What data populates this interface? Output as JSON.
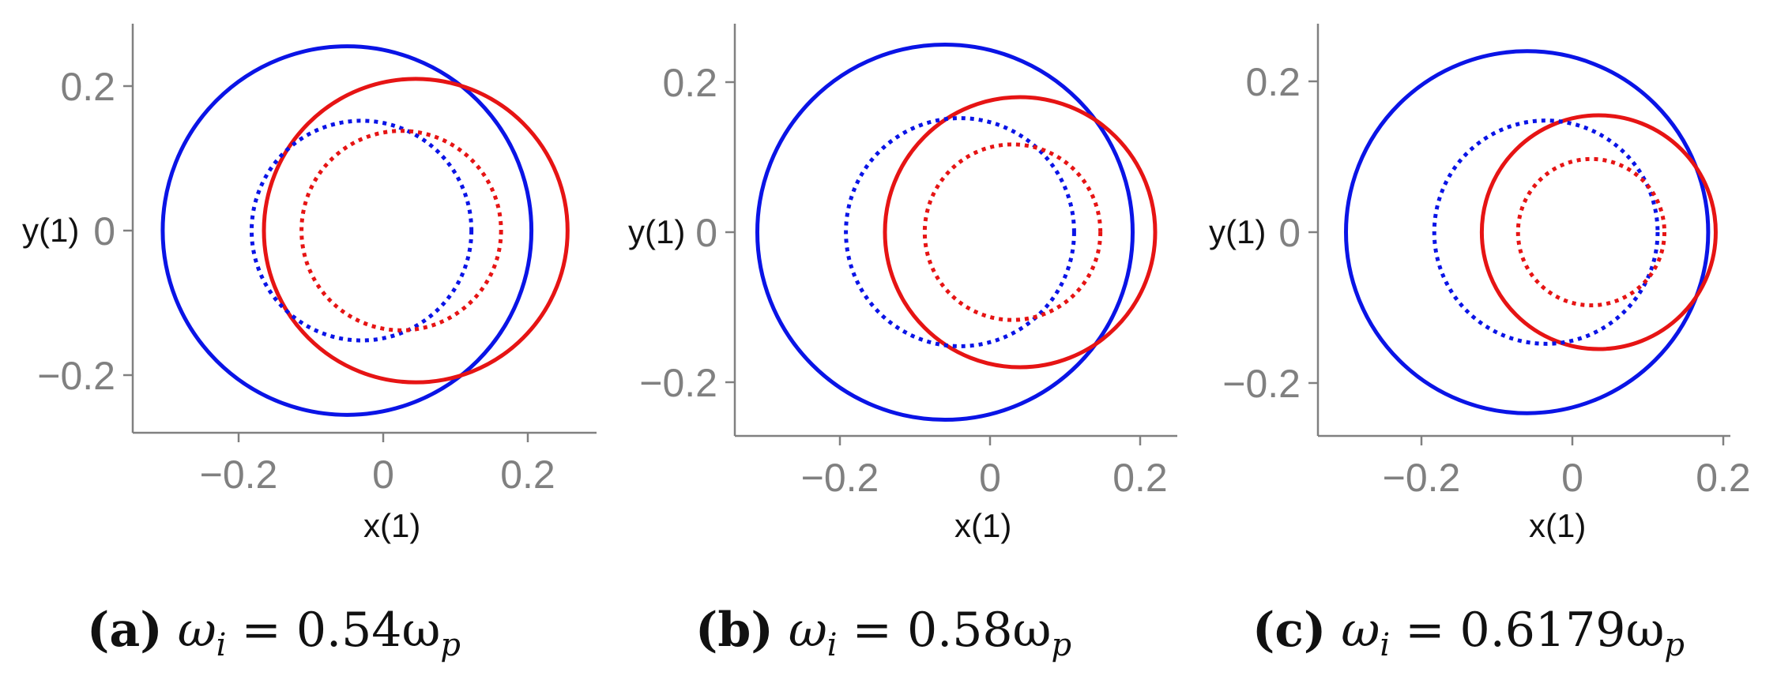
{
  "colors": {
    "blue": "#0a14e6",
    "red": "#e61414",
    "axis": "#808080"
  },
  "chart_data": [
    {
      "type": "line",
      "panel_tag": "(a)",
      "caption": {
        "lhs": "ω",
        "sub": "i",
        "eq": " = 0.54ω",
        "sub2": "p"
      },
      "xlabel": "x(1)",
      "ylabel": "y(1)",
      "xlim": [
        -0.35,
        0.3
      ],
      "ylim": [
        -0.28,
        0.28
      ],
      "xticks": [
        -0.2,
        0,
        0.2
      ],
      "xtick_labels": [
        "−0.2",
        "0",
        "0.2"
      ],
      "yticks": [
        -0.2,
        0,
        0.2
      ],
      "ytick_labels": [
        "−0.2",
        "0",
        "0.2"
      ],
      "series": [
        {
          "color": "blue",
          "style": "solid",
          "center": [
            -0.05,
            0
          ],
          "radius": 0.255
        },
        {
          "color": "red",
          "style": "solid",
          "center": [
            0.045,
            0
          ],
          "radius": 0.21
        },
        {
          "color": "blue",
          "style": "dotted",
          "center": [
            -0.03,
            0
          ],
          "radius": 0.152
        },
        {
          "color": "red",
          "style": "dotted",
          "center": [
            0.025,
            0
          ],
          "radius": 0.138
        }
      ]
    },
    {
      "type": "line",
      "panel_tag": "(b)",
      "caption": {
        "lhs": "ω",
        "sub": "i",
        "eq": " = 0.58ω",
        "sub2": "p"
      },
      "xlabel": "x(1)",
      "ylabel": "y(1)",
      "xlim": [
        -0.35,
        0.26
      ],
      "ylim": [
        -0.28,
        0.28
      ],
      "xticks": [
        -0.2,
        0,
        0.2
      ],
      "xtick_labels": [
        "−0.2",
        "0",
        "0.2"
      ],
      "yticks": [
        -0.2,
        0,
        0.2
      ],
      "ytick_labels": [
        "−0.2",
        "0",
        "0.2"
      ],
      "series": [
        {
          "color": "blue",
          "style": "solid",
          "center": [
            -0.06,
            0
          ],
          "radius": 0.25
        },
        {
          "color": "red",
          "style": "solid",
          "center": [
            0.04,
            0
          ],
          "radius": 0.18
        },
        {
          "color": "blue",
          "style": "dotted",
          "center": [
            -0.04,
            0
          ],
          "radius": 0.152
        },
        {
          "color": "red",
          "style": "dotted",
          "center": [
            0.03,
            0
          ],
          "radius": 0.117
        }
      ]
    },
    {
      "type": "line",
      "panel_tag": "(c)",
      "caption": {
        "lhs": "ω",
        "sub": "i",
        "eq": " = 0.6179ω",
        "sub2": "p"
      },
      "xlabel": "x(1)",
      "ylabel": "y(1)",
      "xlim": [
        -0.33,
        0.2
      ],
      "ylim": [
        -0.28,
        0.28
      ],
      "xticks": [
        -0.2,
        0,
        0.2
      ],
      "xtick_labels": [
        "−0.2",
        "0",
        "0.2"
      ],
      "yticks": [
        -0.2,
        0,
        0.2
      ],
      "ytick_labels": [
        "−0.2",
        "0",
        "0.2"
      ],
      "series": [
        {
          "color": "blue",
          "style": "solid",
          "center": [
            -0.06,
            0
          ],
          "radius": 0.24
        },
        {
          "color": "red",
          "style": "solid",
          "center": [
            0.035,
            0
          ],
          "radius": 0.155
        },
        {
          "color": "blue",
          "style": "dotted",
          "center": [
            -0.035,
            0
          ],
          "radius": 0.148
        },
        {
          "color": "red",
          "style": "dotted",
          "center": [
            0.025,
            0
          ],
          "radius": 0.097
        }
      ]
    }
  ]
}
